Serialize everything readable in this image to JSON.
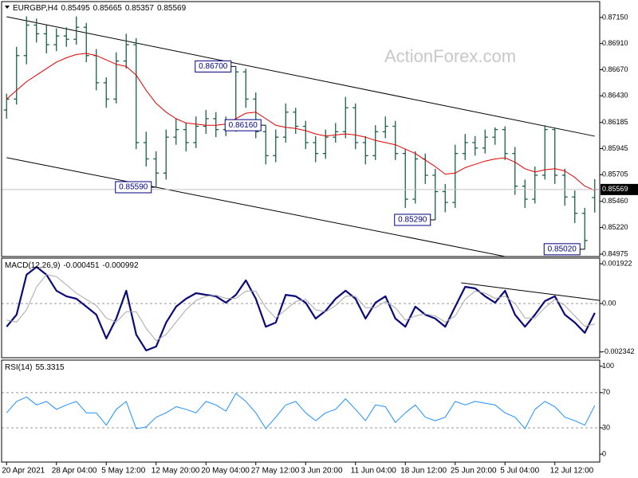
{
  "chart_data": [
    {
      "type": "ohlc",
      "symbol": "EURGBP,H4",
      "watermark": "ActionForex.com",
      "color": "#1a5f4a",
      "categories": [
        "20 Apr 2021",
        null,
        null,
        null,
        null,
        "28 Apr 04:00",
        null,
        null,
        null,
        null,
        "5 May 12:00",
        null,
        null,
        null,
        null,
        "12 May 20:00",
        null,
        null,
        null,
        null,
        "20 May 04:00",
        null,
        null,
        null,
        null,
        "27 May 12:00",
        null,
        null,
        null,
        null,
        "3 Jun 20:00",
        null,
        null,
        null,
        null,
        "11 Jun 04:00",
        null,
        null,
        null,
        null,
        "18 Jun 12:00",
        null,
        null,
        null,
        null,
        "25 Jun 20:00",
        null,
        null,
        null,
        null,
        "5 Jul 04:00",
        null,
        null,
        null,
        null,
        "12 Jul 12:00",
        null,
        null,
        null,
        null
      ],
      "open": [
        0.863,
        0.864,
        0.868,
        0.8708,
        0.87,
        0.869,
        0.8698,
        0.8695,
        0.8706,
        0.868,
        0.8655,
        0.864,
        0.8675,
        0.869,
        0.86,
        0.8585,
        0.8572,
        0.8605,
        0.8612,
        0.86,
        0.8615,
        0.8622,
        0.8612,
        0.8615,
        0.8665,
        0.864,
        0.861,
        0.8588,
        0.8605,
        0.8628,
        0.8615,
        0.86,
        0.859,
        0.8605,
        0.861,
        0.8632,
        0.86,
        0.8588,
        0.861,
        0.8615,
        0.859,
        0.8548,
        0.8585,
        0.857,
        0.8555,
        0.8545,
        0.859,
        0.86,
        0.8595,
        0.8605,
        0.8612,
        0.859,
        0.856,
        0.8548,
        0.857,
        0.8612,
        0.857,
        0.855,
        0.8535,
        0.85495
      ],
      "high": [
        0.8645,
        0.8688,
        0.8716,
        0.8714,
        0.8708,
        0.8705,
        0.8706,
        0.8716,
        0.871,
        0.8686,
        0.866,
        0.8683,
        0.87,
        0.8696,
        0.861,
        0.8592,
        0.8612,
        0.8622,
        0.8618,
        0.8624,
        0.863,
        0.8628,
        0.8624,
        0.867,
        0.8668,
        0.8646,
        0.8616,
        0.8612,
        0.8636,
        0.8632,
        0.862,
        0.8606,
        0.8612,
        0.8618,
        0.8642,
        0.8636,
        0.8606,
        0.8616,
        0.8624,
        0.862,
        0.8594,
        0.8592,
        0.859,
        0.8576,
        0.8562,
        0.8598,
        0.8608,
        0.8606,
        0.8612,
        0.8614,
        0.8615,
        0.8596,
        0.8566,
        0.8578,
        0.8616,
        0.8614,
        0.8576,
        0.8556,
        0.854,
        0.85665
      ],
      "low": [
        0.8622,
        0.8635,
        0.8672,
        0.8692,
        0.8682,
        0.8684,
        0.8688,
        0.869,
        0.8674,
        0.8648,
        0.8632,
        0.8636,
        0.8668,
        0.8594,
        0.8578,
        0.8559,
        0.8566,
        0.8598,
        0.8592,
        0.8595,
        0.8608,
        0.8605,
        0.8606,
        0.861,
        0.8632,
        0.8604,
        0.858,
        0.8582,
        0.86,
        0.8608,
        0.8594,
        0.8582,
        0.8585,
        0.86,
        0.8604,
        0.8594,
        0.858,
        0.8584,
        0.8604,
        0.8584,
        0.854,
        0.8544,
        0.8562,
        0.8529,
        0.8536,
        0.854,
        0.8584,
        0.8588,
        0.859,
        0.8598,
        0.8584,
        0.8552,
        0.854,
        0.8544,
        0.8566,
        0.8562,
        0.8542,
        0.8526,
        0.8502,
        0.85357
      ],
      "close": [
        0.864,
        0.868,
        0.8708,
        0.87,
        0.869,
        0.8698,
        0.8695,
        0.8706,
        0.868,
        0.8655,
        0.864,
        0.8675,
        0.869,
        0.86,
        0.8585,
        0.8572,
        0.8605,
        0.8612,
        0.86,
        0.8615,
        0.8622,
        0.8612,
        0.8615,
        0.8665,
        0.864,
        0.861,
        0.8588,
        0.8605,
        0.8628,
        0.8615,
        0.86,
        0.859,
        0.8605,
        0.861,
        0.8632,
        0.86,
        0.8588,
        0.861,
        0.8615,
        0.859,
        0.8548,
        0.8585,
        0.857,
        0.8555,
        0.8545,
        0.859,
        0.86,
        0.8595,
        0.8605,
        0.8612,
        0.859,
        0.856,
        0.8548,
        0.857,
        0.8612,
        0.857,
        0.855,
        0.8535,
        0.851,
        0.85569
      ],
      "ma": {
        "color": "#e00000",
        "values": [
          0.864,
          0.8648,
          0.8656,
          0.8662,
          0.8668,
          0.8674,
          0.8678,
          0.8681,
          0.8682,
          0.868,
          0.8676,
          0.8672,
          0.867,
          0.8662,
          0.8648,
          0.8636,
          0.8628,
          0.8622,
          0.8618,
          0.8617,
          0.8616,
          0.8616,
          0.8617,
          0.8622,
          0.8627,
          0.8628,
          0.8622,
          0.8616,
          0.8614,
          0.8613,
          0.8611,
          0.8608,
          0.8606,
          0.8607,
          0.8608,
          0.8607,
          0.8605,
          0.8602,
          0.86,
          0.8598,
          0.8594,
          0.859,
          0.8584,
          0.8578,
          0.8571,
          0.8572,
          0.8577,
          0.858,
          0.8583,
          0.8585,
          0.8586,
          0.8582,
          0.8576,
          0.8573,
          0.8575,
          0.8576,
          0.8574,
          0.8568,
          0.856,
          0.8556
        ]
      },
      "trendlines": [
        {
          "x": [
            0,
            59
          ],
          "values": [
            0.87157,
            0.86059
          ]
        },
        {
          "x": [
            0,
            59
          ],
          "values": [
            0.85862,
            0.8479
          ]
        }
      ],
      "annotations": [
        {
          "value": 0.867,
          "label": "0.86700"
        },
        {
          "value": 0.8559,
          "label": "0.85590"
        },
        {
          "value": 0.8529,
          "label": "0.85290"
        },
        {
          "value": 0.8616,
          "label": "0.86160"
        },
        {
          "value": 0.8502,
          "label": "0.85020"
        }
      ],
      "ylim": [
        0.84953,
        0.87296
      ],
      "yticks": [
        {
          "value": 0.8715,
          "label": "0.87150"
        },
        {
          "value": 0.8691,
          "label": "0.86910"
        },
        {
          "value": 0.8667,
          "label": "0.86670"
        },
        {
          "value": 0.8643,
          "label": "0.86430"
        },
        0.86185,
        0.85945,
        0.85705,
        {
          "value": 0.8546,
          "label": "0.85460"
        },
        {
          "value": 0.8522,
          "label": "0.85220"
        },
        0.84975
      ]
    },
    {
      "type": "line",
      "title": "MACD(12,26,9)",
      "series": [
        {
          "color": "#0a0a78",
          "width": 2.2,
          "values": [
            -0.00112,
            -0.00054,
            0.00139,
            0.00177,
            0.00139,
            0.00062,
            0.00035,
            0.00023,
            -0.00015,
            -0.00054,
            -0.00169,
            -0.00073,
            0.00062,
            -0.0015,
            -0.00227,
            -0.00208,
            -0.00092,
            -0.00015,
            0.00023,
            0.0005,
            0.00042,
            0.00035,
            4e-05,
            0.00042,
            0.00112,
            0.00023,
            -0.00112,
            -0.00092,
            0.00042,
            0.00035,
            4e-05,
            -0.00073,
            -0.00035,
            0.00023,
            0.00062,
            0.00023,
            -0.00073,
            4e-05,
            0.00035,
            -0.00073,
            -0.00112,
            -0.00015,
            -0.00054,
            -0.00073,
            -0.00112,
            -0.00015,
            0.00081,
            0.00073,
            0.00035,
            4e-05,
            0.00062,
            -0.00054,
            -0.00112,
            -0.00054,
            0.00012,
            0.00035,
            -0.00054,
            -0.00092,
            -0.00142,
            -0.000451
          ]
        },
        {
          "color": "#a8a8a8",
          "width": 1,
          "values": [
            -0.0008,
            -0.0009,
            -0.0003,
            0.0008,
            0.0014,
            0.0013,
            0.0009,
            0.0005,
            0.0002,
            -0.0001,
            -0.0007,
            -0.0009,
            -0.0004,
            -0.0004,
            -0.0012,
            -0.0018,
            -0.0015,
            -0.0009,
            -0.0003,
            0.00015,
            0.00035,
            0.0004,
            0.00025,
            0.00025,
            0.0006,
            0.0006,
            -0.0002,
            -0.0007,
            -0.0003,
            0.0001,
            0.0002,
            -0.0003,
            -0.0004,
            -0.0001,
            0.00035,
            0.00035,
            -0.0002,
            -0.0002,
            0.0001,
            -0.0002,
            -0.0008,
            -0.0006,
            -0.0005,
            -0.0006,
            -0.0009,
            -0.0006,
            0.0002,
            0.0006,
            0.0005,
            0.00025,
            0.00035,
            0,
            -0.0007,
            -0.0007,
            -0.0002,
            0.0002,
            -0.0001,
            -0.0006,
            -0.0011,
            -0.000992
          ]
        }
      ],
      "trendlines": [
        {
          "x": [
            45.6,
            59.5
          ],
          "values": [
            0.001,
            0.00015
          ]
        }
      ],
      "levels": [
        0
      ],
      "ylim": [
        -0.00262,
        0.002195
      ],
      "yticks": [
        0.001922,
        {
          "value": 0,
          "label": "0.00"
        },
        -0.002342
      ]
    },
    {
      "type": "line",
      "title": "RSI(14)",
      "series": [
        {
          "color": "#1e90ff",
          "width": 1,
          "values": [
            47,
            60,
            65,
            56,
            60,
            51,
            56,
            60,
            47,
            47,
            33,
            51,
            60,
            29,
            31,
            42,
            47,
            54,
            51,
            47,
            60,
            56,
            49,
            69,
            60,
            47,
            29,
            42,
            56,
            60,
            47,
            38,
            47,
            51,
            63,
            51,
            38,
            56,
            54,
            36,
            47,
            56,
            42,
            38,
            42,
            60,
            56,
            60,
            58,
            56,
            47,
            42,
            29,
            51,
            60,
            54,
            42,
            38,
            33,
            55.3315
          ]
        }
      ],
      "levels": [
        30,
        70
      ],
      "ylim": [
        -9,
        107
      ],
      "yticks": [
        100,
        70,
        30,
        0
      ]
    }
  ]
}
